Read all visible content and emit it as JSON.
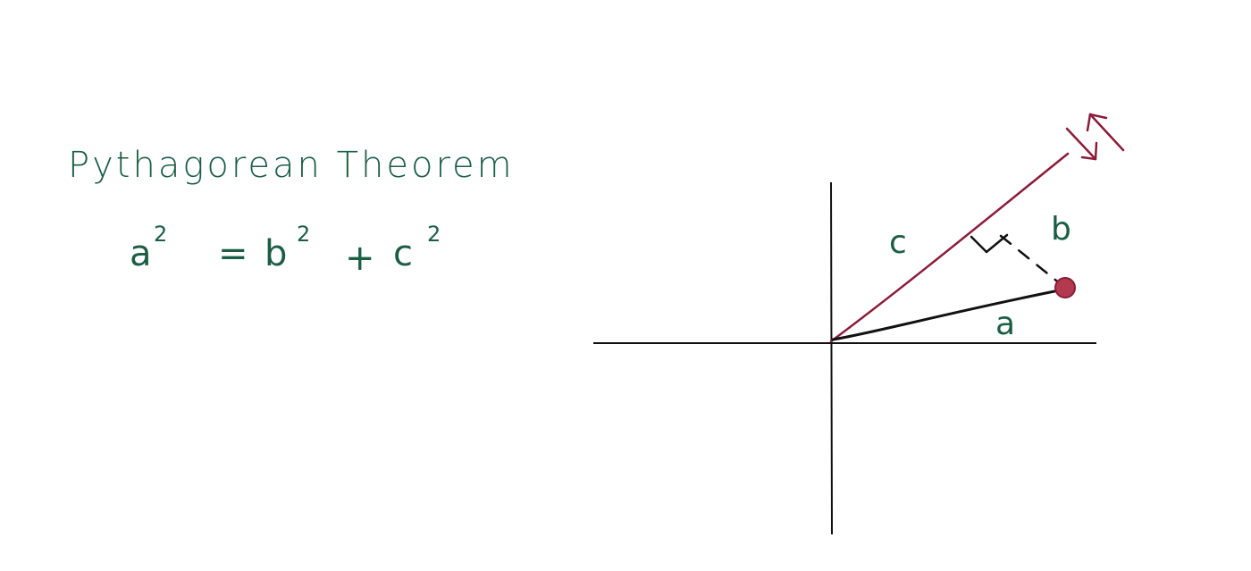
{
  "title": "Pythagorean Theorem",
  "formula": {
    "a": "a",
    "a_exp": "2",
    "equals": "=",
    "b": "b",
    "b_exp": "2",
    "plus": "+",
    "c": "c",
    "c_exp": "2"
  },
  "labels": {
    "c": "c",
    "b": "b",
    "a": "a"
  },
  "colors": {
    "ink_green": "#1b5e45",
    "ink_red": "#8b1c3a",
    "point": "#b23a4f",
    "axis": "#111111"
  }
}
